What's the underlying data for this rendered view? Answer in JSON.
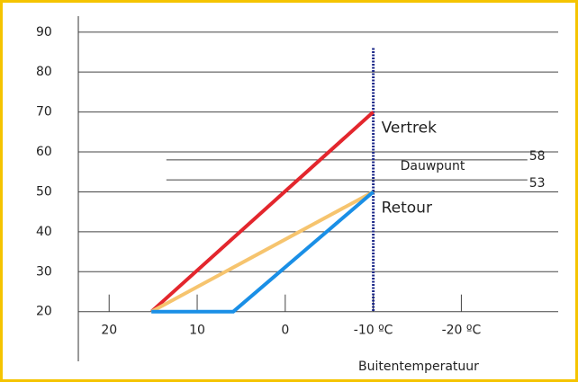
{
  "chart_data": {
    "type": "line",
    "xlabel": "Buitentemperatuur",
    "xlim": [
      23.5,
      -31
    ],
    "ylim": [
      8,
      94
    ],
    "xticks": [
      20,
      10,
      0,
      {
        "value": -10,
        "label": "-10 ºC"
      },
      {
        "value": -20,
        "label": "-20 ºC"
      }
    ],
    "yticks": [
      20,
      30,
      40,
      50,
      60,
      70,
      80,
      90
    ],
    "grid": true,
    "series": [
      {
        "name": "Vertrek",
        "color": "#e3262d",
        "x": [
          15.2,
          -10
        ],
        "values": [
          20,
          70
        ]
      },
      {
        "name": "Retour",
        "color": "#f6c46e",
        "x": [
          15.2,
          -10
        ],
        "values": [
          20,
          50
        ]
      },
      {
        "color": "#1a8fe6",
        "x": [
          15.2,
          5.9,
          -10
        ],
        "values": [
          20,
          20,
          50
        ]
      }
    ],
    "vertical_line": {
      "x": -10,
      "top": 86,
      "color": "#1f2a8a"
    },
    "dew_point": {
      "label": "Dauwpunt",
      "values": [
        58,
        53
      ],
      "x": [
        13.5,
        -27.5
      ],
      "color": "#e3262d"
    }
  }
}
